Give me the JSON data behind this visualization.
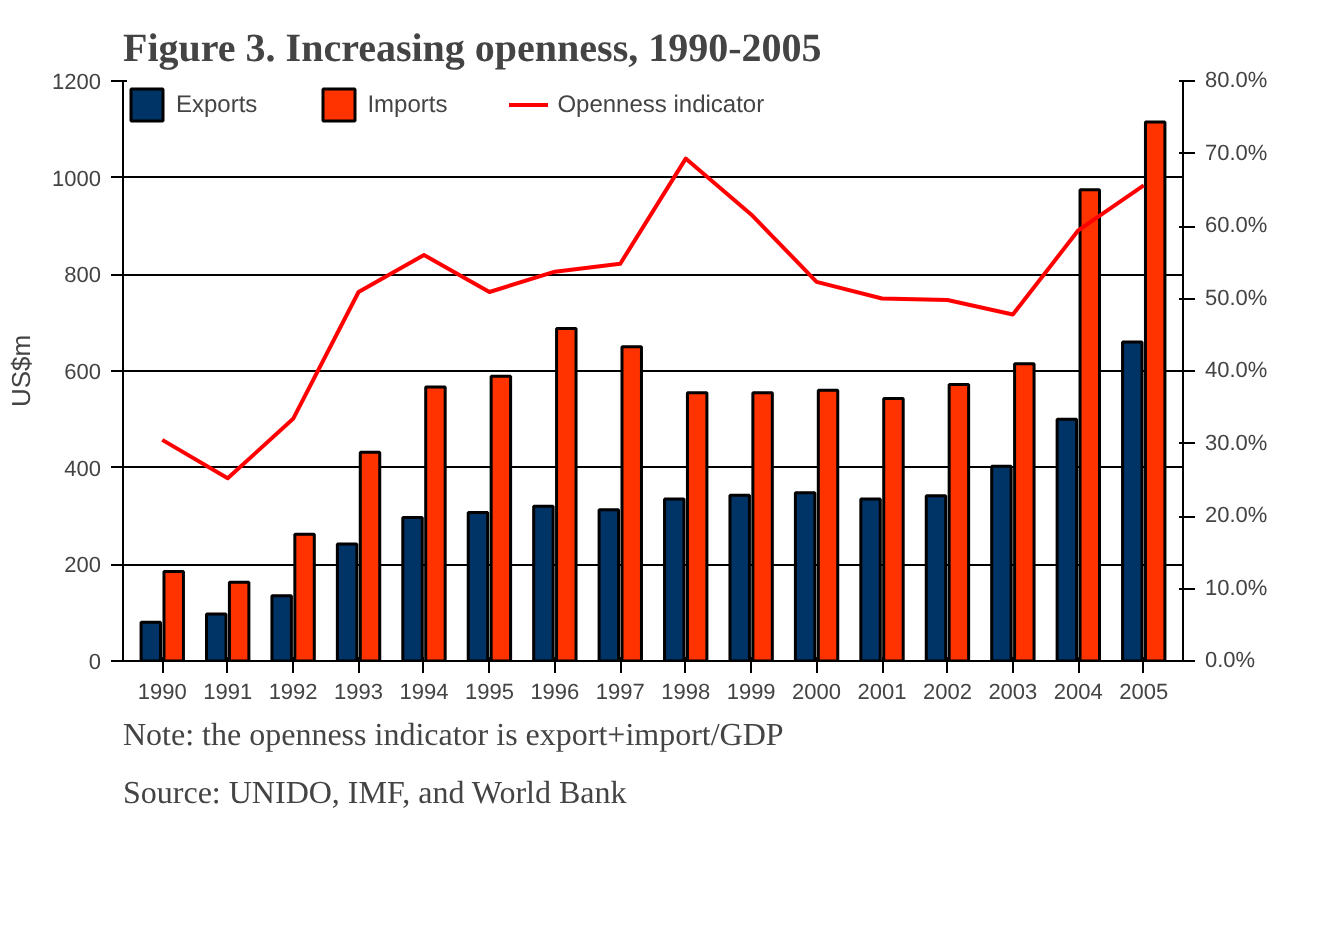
{
  "chart_data": {
    "type": "bar",
    "title": "Figure 3. Increasing openness, 1990-2005",
    "ylabel": "US$m",
    "categories": [
      "1990",
      "1991",
      "1992",
      "1993",
      "1994",
      "1995",
      "1996",
      "1997",
      "1998",
      "1999",
      "2000",
      "2001",
      "2002",
      "2003",
      "2004",
      "2005"
    ],
    "series": [
      {
        "name": "Exports",
        "color": "#003366",
        "values": [
          80,
          97,
          135,
          242,
          297,
          307,
          320,
          313,
          335,
          343,
          348,
          335,
          342,
          403,
          500,
          660
        ]
      },
      {
        "name": "Imports",
        "color": "#ff3300",
        "values": [
          185,
          163,
          262,
          432,
          567,
          589,
          688,
          650,
          555,
          555,
          560,
          543,
          572,
          615,
          975,
          1115
        ]
      },
      {
        "name": "Openness indicator",
        "type": "line",
        "axis": "y2",
        "color": "#ff0000",
        "values": [
          30.5,
          25.2,
          33.4,
          50.9,
          56.0,
          50.9,
          53.7,
          54.8,
          69.3,
          61.6,
          52.3,
          50.0,
          49.8,
          47.8,
          59.4,
          65.6
        ]
      }
    ],
    "ylim": [
      0,
      1200
    ],
    "yticks": [
      0,
      200,
      400,
      600,
      800,
      1000,
      1200
    ],
    "y2lim": [
      0,
      80
    ],
    "y2ticks": [
      {
        "value": 0,
        "label": "0.0%"
      },
      {
        "value": 10,
        "label": "10.0%"
      },
      {
        "value": 20,
        "label": "20.0%"
      },
      {
        "value": 30,
        "label": "30.0%"
      },
      {
        "value": 40,
        "label": "40.0%"
      },
      {
        "value": 50,
        "label": "50.0%"
      },
      {
        "value": 60,
        "label": "60.0%"
      },
      {
        "value": 70,
        "label": "70.0%"
      },
      {
        "value": 80,
        "label": "80.0%"
      }
    ],
    "grid": "y",
    "legend": "top",
    "annotations": [
      "Note: the openness indicator is export+import/GDP",
      "Source: UNIDO, IMF, and World Bank"
    ]
  }
}
